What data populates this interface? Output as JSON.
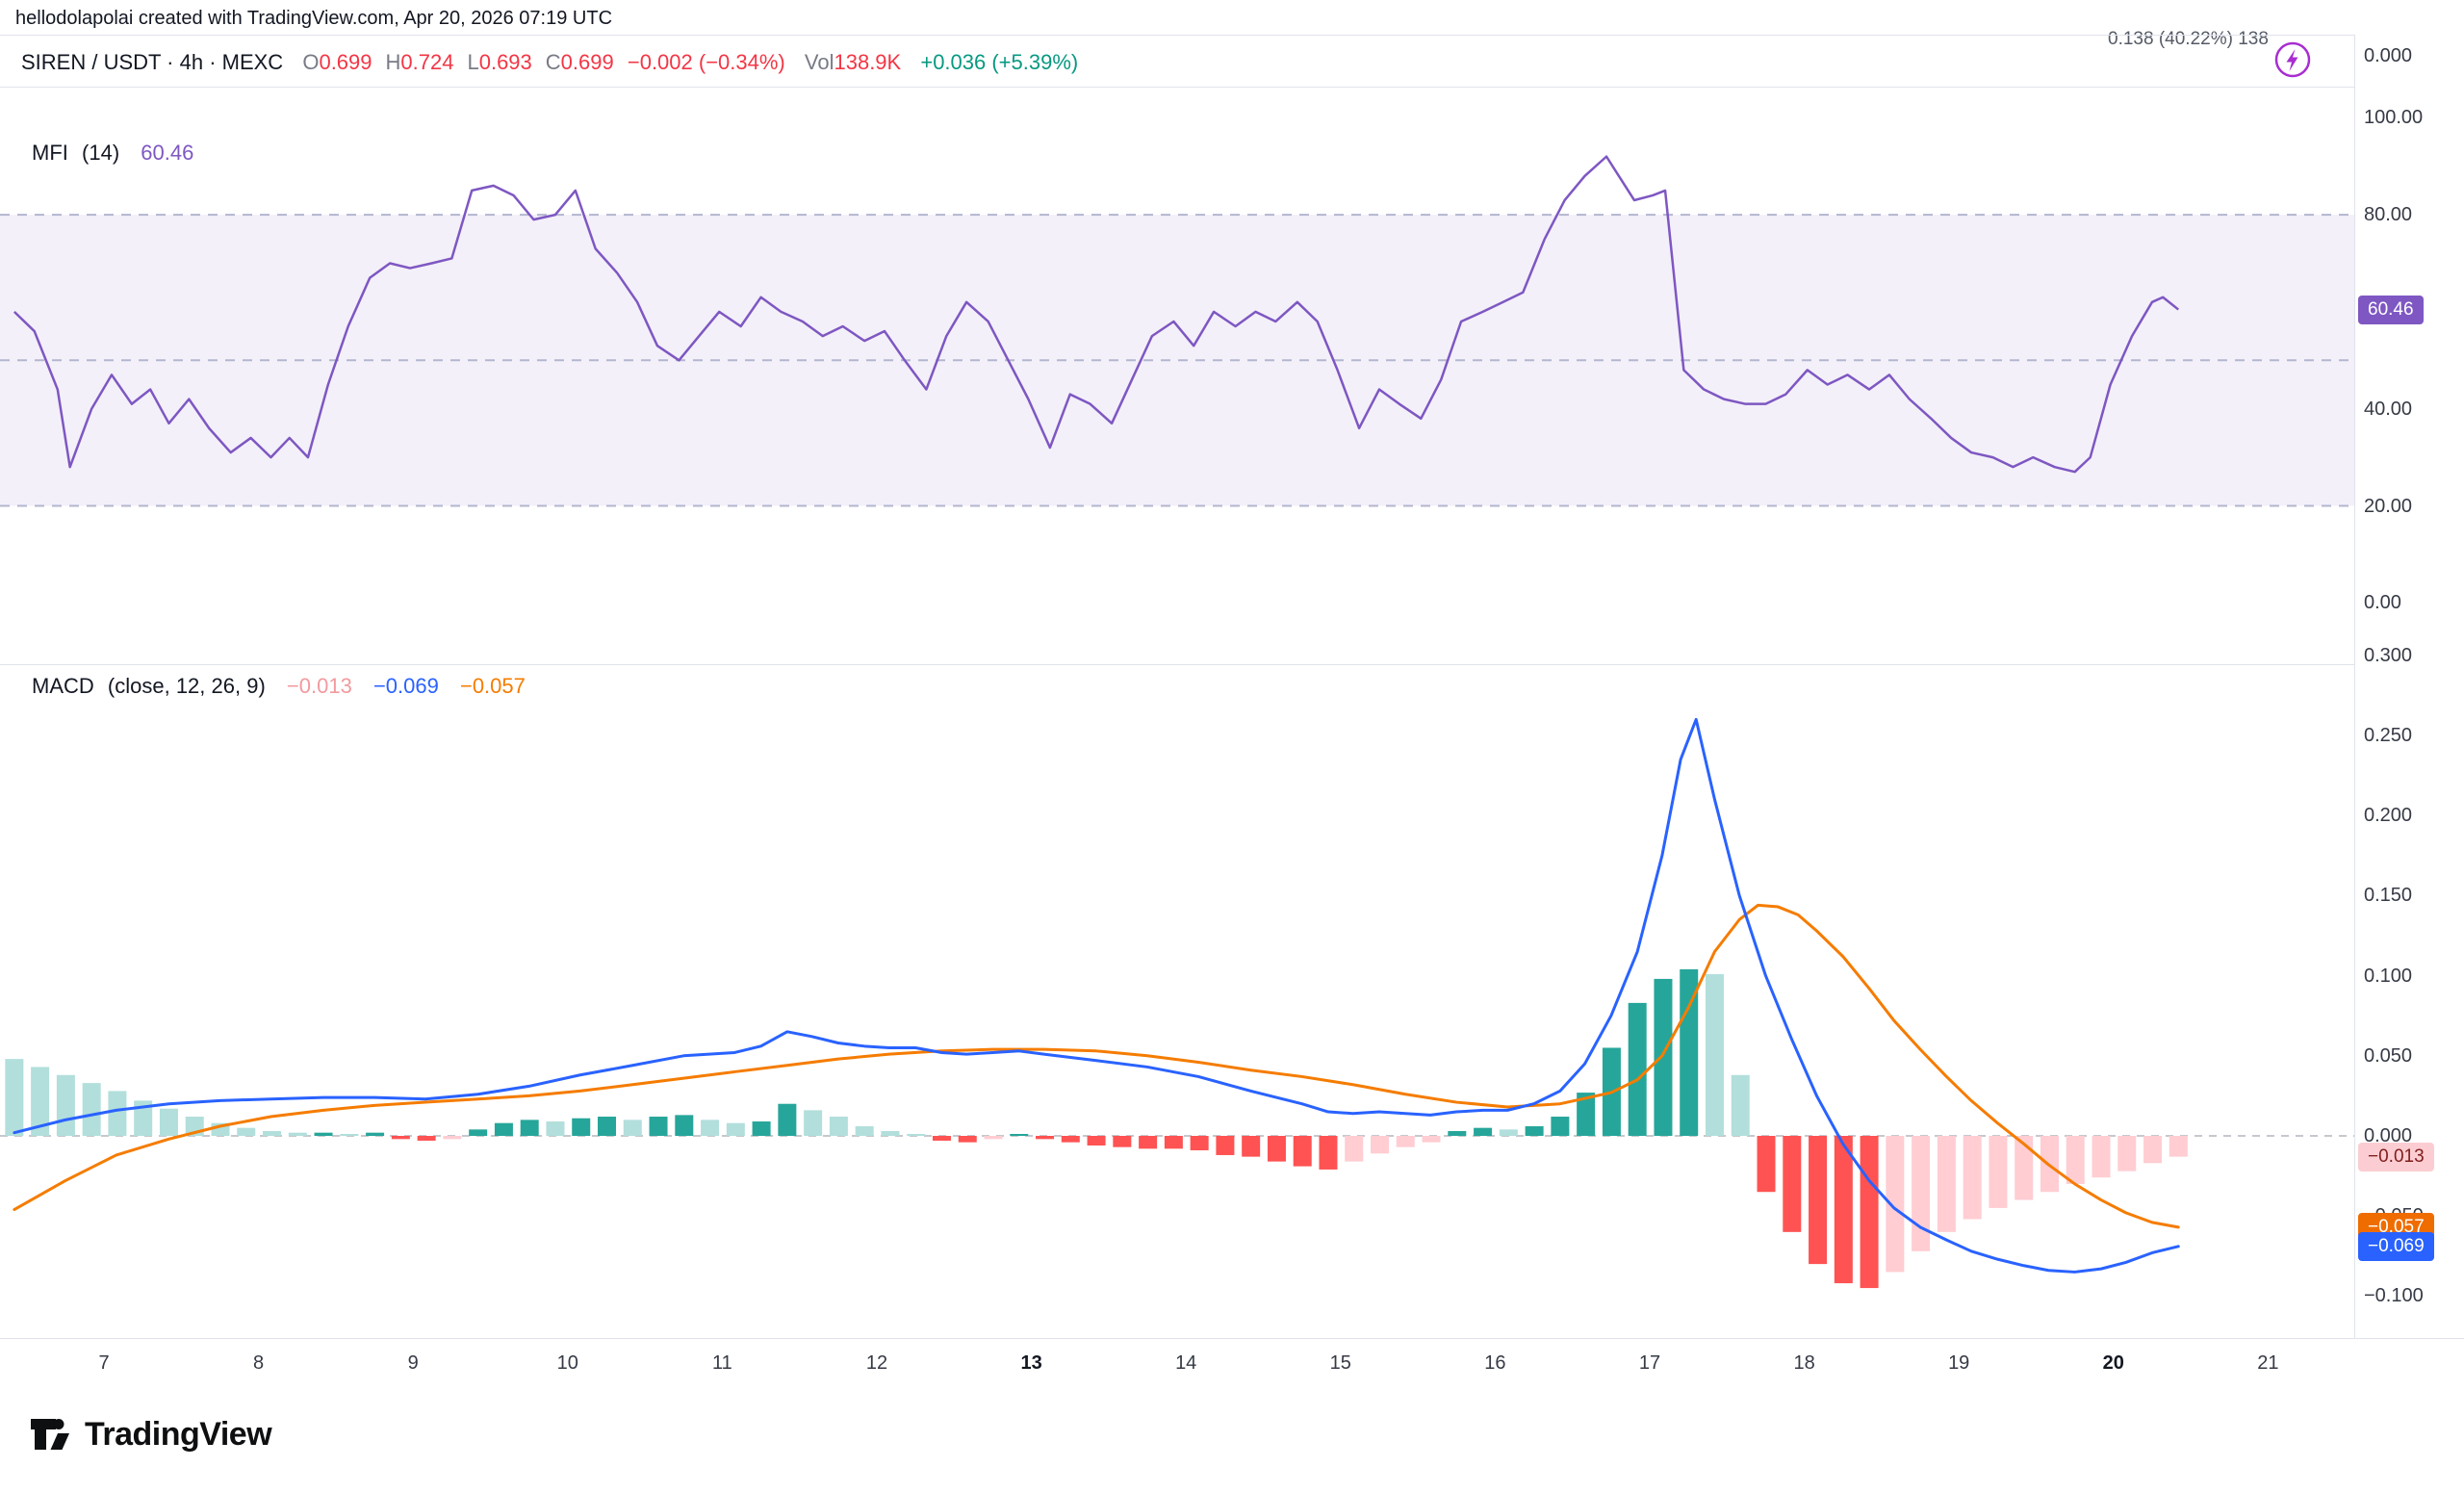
{
  "attribution": "hellodolapolai created with TradingView.com, Apr 20, 2026 07:19 UTC",
  "clipped_value": "0.138 (40.22%) 138",
  "header": {
    "title": "SIREN / USDT · 4h · MEXC",
    "ohlc": [
      {
        "label": "O",
        "value": "0.699"
      },
      {
        "label": "H",
        "value": "0.724"
      },
      {
        "label": "L",
        "value": "0.693"
      },
      {
        "label": "C",
        "value": "0.699"
      }
    ],
    "change": "−0.002 (−0.34%)",
    "vol_label": "Vol",
    "vol_value": "138.9K",
    "change_24h": "+0.036 (+5.39%)"
  },
  "mfi_pane": {
    "title": "MFI",
    "params": "(14)",
    "value": "60.46",
    "badge": {
      "text": "60.46",
      "value": 60.46,
      "bg": "#7e57c2",
      "fg": "#ffffff"
    },
    "top_tick": "0.000",
    "ticks": [
      {
        "text": "100.00",
        "value": 100
      },
      {
        "text": "80.00",
        "value": 80
      },
      {
        "text": "40.00",
        "value": 40
      },
      {
        "text": "20.00",
        "value": 20
      },
      {
        "text": "0.00",
        "value": 0
      }
    ],
    "band_levels": [
      80,
      50,
      20
    ]
  },
  "macd_pane": {
    "title": "MACD",
    "params": "(close, 12, 26, 9)",
    "hist_value": "−0.013",
    "macd_value": "−0.069",
    "signal_value": "−0.057",
    "ticks": [
      {
        "text": "0.300",
        "value": 0.3
      },
      {
        "text": "0.250",
        "value": 0.25
      },
      {
        "text": "0.200",
        "value": 0.2
      },
      {
        "text": "0.150",
        "value": 0.15
      },
      {
        "text": "0.100",
        "value": 0.1
      },
      {
        "text": "0.050",
        "value": 0.05
      },
      {
        "text": "0.000",
        "value": 0.0
      },
      {
        "text": "−0.050",
        "value": -0.05
      },
      {
        "text": "−0.100",
        "value": -0.1
      }
    ],
    "badges": [
      {
        "text": "−0.013",
        "value": -0.013,
        "bg": "#fbcdd2",
        "fg": "#7f1d1d"
      },
      {
        "text": "−0.057",
        "value": -0.057,
        "bg": "#ef6c00",
        "fg": "#ffffff"
      },
      {
        "text": "−0.069",
        "value": -0.069,
        "bg": "#2962ff",
        "fg": "#ffffff"
      }
    ]
  },
  "time_axis": {
    "labels": [
      "7",
      "8",
      "9",
      "10",
      "11",
      "12",
      "13",
      "14",
      "15",
      "16",
      "17",
      "18",
      "19",
      "20",
      "21"
    ],
    "bold": [
      "13",
      "20"
    ]
  },
  "logo_text": "TradingView",
  "colors": {
    "mfi_line": "#7e57c2",
    "mfi_band_fill": "rgba(126,87,194,0.09)",
    "band_dash": "#b3b6cf",
    "zero_dash": "#b2b5be",
    "macd_line": "#2962ff",
    "signal_line": "#f57c00",
    "hist_grow_above": "#26a69a",
    "hist_fall_above": "#b2dfdb",
    "hist_fall_below": "#ff5252",
    "hist_grow_below": "#ffcdd2",
    "up_green": "#089981",
    "down_red": "#f23645"
  },
  "chart_data": [
    {
      "type": "line",
      "title": "MFI (14)",
      "ylabel": "MFI",
      "ylim": [
        0,
        100
      ],
      "grid": "dashed bands at 80 / 50 / 20, shaded zone 20-80",
      "legend_position": "top-left",
      "current_value": 60.46,
      "series": [
        {
          "name": "MFI",
          "x": [
            6.42,
            6.55,
            6.7,
            6.78,
            6.92,
            7.05,
            7.18,
            7.3,
            7.42,
            7.55,
            7.68,
            7.82,
            7.95,
            8.08,
            8.2,
            8.32,
            8.45,
            8.58,
            8.72,
            8.85,
            8.98,
            9.12,
            9.25,
            9.38,
            9.52,
            9.65,
            9.78,
            9.92,
            10.05,
            10.18,
            10.32,
            10.45,
            10.58,
            10.72,
            10.85,
            10.98,
            11.12,
            11.25,
            11.38,
            11.52,
            11.65,
            11.78,
            11.92,
            12.05,
            12.18,
            12.32,
            12.45,
            12.58,
            12.72,
            12.85,
            12.98,
            13.12,
            13.25,
            13.38,
            13.52,
            13.65,
            13.78,
            13.92,
            14.05,
            14.18,
            14.32,
            14.45,
            14.58,
            14.72,
            14.85,
            14.98,
            15.12,
            15.25,
            15.38,
            15.52,
            15.65,
            15.78,
            15.92,
            16.05,
            16.18,
            16.32,
            16.45,
            16.58,
            16.72,
            16.82,
            16.9,
            17.02,
            17.1,
            17.22,
            17.35,
            17.48,
            17.62,
            17.75,
            17.88,
            18.02,
            18.15,
            18.28,
            18.42,
            18.55,
            18.68,
            18.82,
            18.95,
            19.08,
            19.22,
            19.35,
            19.48,
            19.62,
            19.75,
            19.85,
            19.98,
            20.12,
            20.25,
            20.32,
            20.42
          ],
          "values": [
            60,
            56,
            44,
            28,
            40,
            47,
            41,
            44,
            37,
            42,
            36,
            31,
            34,
            30,
            34,
            30,
            45,
            57,
            67,
            70,
            69,
            70,
            71,
            85,
            86,
            84,
            79,
            80,
            85,
            73,
            68,
            62,
            53,
            50,
            55,
            60,
            57,
            63,
            60,
            58,
            55,
            57,
            54,
            56,
            50,
            44,
            55,
            62,
            58,
            50,
            42,
            32,
            43,
            41,
            37,
            46,
            55,
            58,
            53,
            60,
            57,
            60,
            58,
            62,
            58,
            48,
            36,
            44,
            41,
            38,
            46,
            58,
            60,
            62,
            64,
            75,
            83,
            88,
            92,
            87,
            83,
            84,
            85,
            48,
            44,
            42,
            41,
            41,
            43,
            48,
            45,
            47,
            44,
            47,
            42,
            38,
            34,
            31,
            30,
            28,
            30,
            28,
            27,
            30,
            45,
            55,
            62,
            63,
            60.46
          ]
        }
      ]
    },
    {
      "type": "macd",
      "title": "MACD (close, 12, 26, 9)",
      "ylim": [
        -0.1,
        0.3
      ],
      "grid": "dashed zero line",
      "x_axis_days": [
        7,
        8,
        9,
        10,
        11,
        12,
        13,
        14,
        15,
        16,
        17,
        18,
        19,
        20,
        21
      ],
      "series": [
        {
          "name": "histogram",
          "style": "bar",
          "x_start": 6.42,
          "x_step": 0.16667,
          "values": [
            0.048,
            0.043,
            0.038,
            0.033,
            0.028,
            0.022,
            0.017,
            0.012,
            0.008,
            0.005,
            0.003,
            0.002,
            0.002,
            0.001,
            0.002,
            -0.002,
            -0.003,
            -0.002,
            0.004,
            0.008,
            0.01,
            0.009,
            0.011,
            0.012,
            0.01,
            0.012,
            0.013,
            0.01,
            0.008,
            0.009,
            0.02,
            0.016,
            0.012,
            0.006,
            0.003,
            0.001,
            -0.003,
            -0.004,
            -0.002,
            0.001,
            -0.002,
            -0.004,
            -0.006,
            -0.007,
            -0.008,
            -0.008,
            -0.009,
            -0.012,
            -0.013,
            -0.016,
            -0.019,
            -0.021,
            -0.016,
            -0.011,
            -0.007,
            -0.004,
            0.003,
            0.005,
            0.004,
            0.006,
            0.012,
            0.027,
            0.055,
            0.083,
            0.098,
            0.104,
            0.101,
            0.038,
            -0.035,
            -0.06,
            -0.08,
            -0.092,
            -0.095,
            -0.085,
            -0.072,
            -0.06,
            -0.052,
            -0.045,
            -0.04,
            -0.035,
            -0.03,
            -0.026,
            -0.022,
            -0.017,
            -0.013
          ]
        },
        {
          "name": "macd",
          "style": "line",
          "x": [
            6.42,
            6.75,
            7.08,
            7.42,
            7.75,
            8.08,
            8.42,
            8.75,
            9.08,
            9.42,
            9.75,
            10.08,
            10.42,
            10.75,
            11.08,
            11.25,
            11.42,
            11.58,
            11.75,
            11.92,
            12.08,
            12.25,
            12.42,
            12.58,
            12.75,
            12.92,
            13.08,
            13.42,
            13.75,
            14.08,
            14.42,
            14.75,
            14.92,
            15.08,
            15.25,
            15.42,
            15.58,
            15.75,
            15.92,
            16.08,
            16.25,
            16.42,
            16.58,
            16.75,
            16.92,
            17.08,
            17.2,
            17.3,
            17.42,
            17.58,
            17.75,
            17.92,
            18.08,
            18.25,
            18.42,
            18.58,
            18.75,
            18.92,
            19.08,
            19.25,
            19.42,
            19.58,
            19.75,
            19.92,
            20.08,
            20.25,
            20.42
          ],
          "values": [
            0.002,
            0.01,
            0.016,
            0.02,
            0.022,
            0.023,
            0.024,
            0.024,
            0.023,
            0.026,
            0.031,
            0.038,
            0.044,
            0.05,
            0.052,
            0.056,
            0.065,
            0.062,
            0.058,
            0.056,
            0.055,
            0.055,
            0.052,
            0.051,
            0.052,
            0.053,
            0.051,
            0.047,
            0.043,
            0.037,
            0.028,
            0.02,
            0.015,
            0.014,
            0.015,
            0.014,
            0.013,
            0.015,
            0.016,
            0.016,
            0.02,
            0.028,
            0.045,
            0.075,
            0.115,
            0.175,
            0.235,
            0.26,
            0.21,
            0.15,
            0.1,
            0.06,
            0.025,
            -0.005,
            -0.028,
            -0.045,
            -0.057,
            -0.065,
            -0.072,
            -0.077,
            -0.081,
            -0.084,
            -0.085,
            -0.083,
            -0.079,
            -0.073,
            -0.069
          ]
        },
        {
          "name": "signal",
          "style": "line",
          "x": [
            6.42,
            6.75,
            7.08,
            7.42,
            7.75,
            8.08,
            8.42,
            8.75,
            9.08,
            9.42,
            9.75,
            10.08,
            10.42,
            10.75,
            11.08,
            11.42,
            11.75,
            12.08,
            12.42,
            12.75,
            13.08,
            13.42,
            13.75,
            14.08,
            14.42,
            14.75,
            15.08,
            15.42,
            15.75,
            16.08,
            16.42,
            16.75,
            16.92,
            17.08,
            17.25,
            17.42,
            17.58,
            17.7,
            17.83,
            17.96,
            18.08,
            18.25,
            18.42,
            18.58,
            18.75,
            18.92,
            19.08,
            19.25,
            19.42,
            19.58,
            19.75,
            19.92,
            20.08,
            20.25,
            20.42
          ],
          "values": [
            -0.046,
            -0.028,
            -0.012,
            -0.002,
            0.006,
            0.012,
            0.016,
            0.019,
            0.021,
            0.023,
            0.025,
            0.028,
            0.032,
            0.036,
            0.04,
            0.044,
            0.048,
            0.051,
            0.053,
            0.054,
            0.054,
            0.053,
            0.05,
            0.046,
            0.041,
            0.037,
            0.032,
            0.026,
            0.021,
            0.018,
            0.02,
            0.027,
            0.035,
            0.05,
            0.08,
            0.115,
            0.135,
            0.144,
            0.143,
            0.138,
            0.128,
            0.112,
            0.092,
            0.072,
            0.054,
            0.037,
            0.022,
            0.008,
            -0.005,
            -0.018,
            -0.03,
            -0.04,
            -0.048,
            -0.054,
            -0.057
          ]
        }
      ]
    }
  ]
}
